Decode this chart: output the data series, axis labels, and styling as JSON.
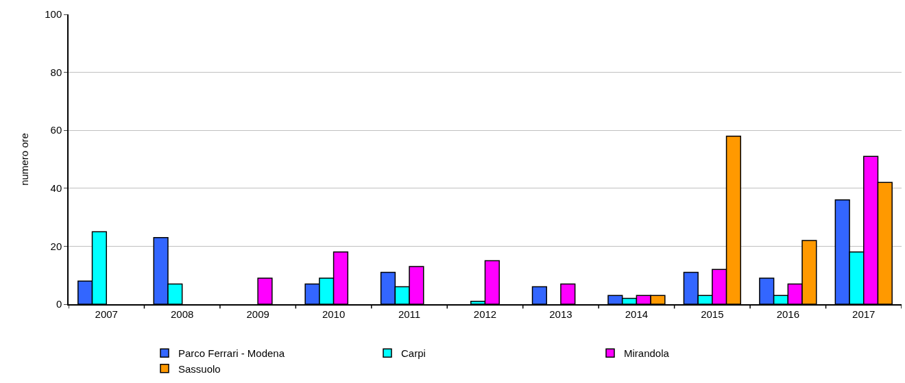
{
  "chart_data": {
    "type": "bar",
    "ylabel": "numero ore",
    "categories": [
      "2007",
      "2008",
      "2009",
      "2010",
      "2011",
      "2012",
      "2013",
      "2014",
      "2015",
      "2016",
      "2017"
    ],
    "series": [
      {
        "name": "Parco Ferrari - Modena",
        "color": "#3366ff",
        "values": [
          8,
          23,
          null,
          7,
          11,
          null,
          6,
          3,
          11,
          9,
          36
        ]
      },
      {
        "name": "Carpi",
        "color": "#00ffff",
        "values": [
          25,
          7,
          null,
          9,
          6,
          1,
          null,
          2,
          3,
          3,
          18
        ]
      },
      {
        "name": "Mirandola",
        "color": "#ff00ff",
        "values": [
          null,
          null,
          9,
          18,
          13,
          15,
          7,
          3,
          12,
          7,
          51
        ]
      },
      {
        "name": "Sassuolo",
        "color": "#ff9900",
        "values": [
          null,
          null,
          null,
          null,
          null,
          null,
          null,
          3,
          58,
          22,
          42
        ]
      }
    ],
    "ylim": [
      0,
      100
    ],
    "yticks": [
      0,
      20,
      40,
      60,
      80,
      100
    ],
    "grid": "y",
    "legend": "bottom"
  }
}
